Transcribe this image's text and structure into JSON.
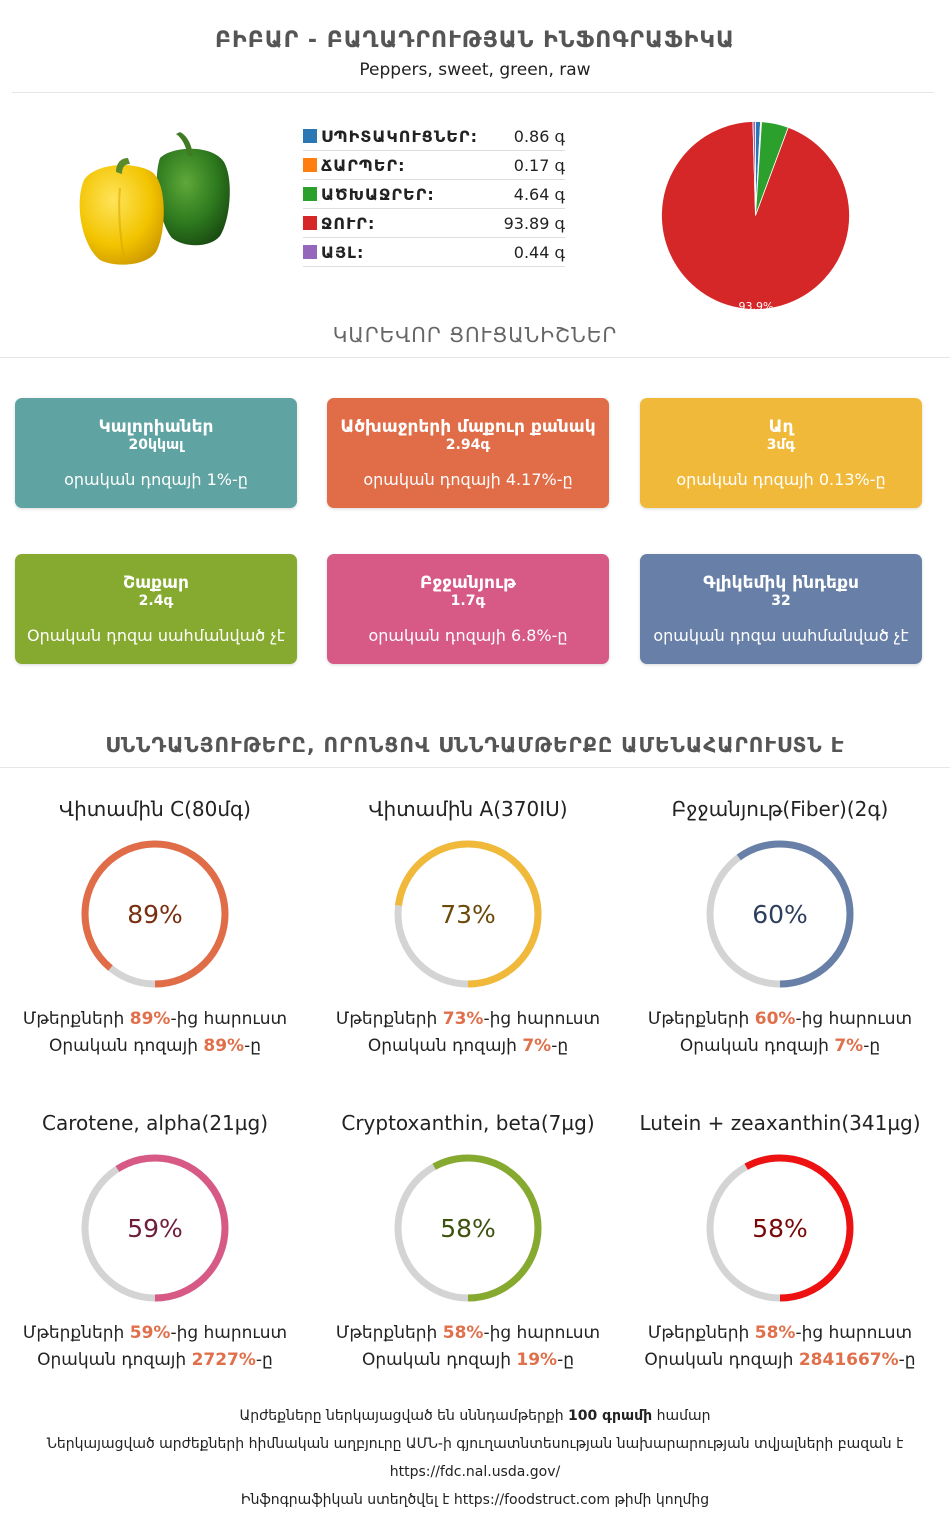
{
  "header": {
    "title": "ԲԻԲԱՐ - ԲԱՂԱԴՐՈՒԹՅԱՆ ԻՆՖՈԳՐԱՖԻԿԱ",
    "subtitle": "Peppers, sweet, green, raw"
  },
  "composition": {
    "rows": [
      {
        "label": "ՍՊԻՏԱԿՈՒՑՆԵՐ:",
        "value": "0.86 գ",
        "color": "#2a77b4"
      },
      {
        "label": "ՃԱՐՊԵՐ:",
        "value": "0.17 գ",
        "color": "#ff7f0e"
      },
      {
        "label": "ԱԾԽԱՋՐԵՐ:",
        "value": "4.64 գ",
        "color": "#2ca02c"
      },
      {
        "label": "ՋՈՒՐ:",
        "value": "93.89 գ",
        "color": "#d62728"
      },
      {
        "label": "ԱՅԼ:",
        "value": "0.44 գ",
        "color": "#9467bd"
      }
    ]
  },
  "chart_data": {
    "type": "pie",
    "categories": [
      "ՍՊԻՏԱԿՈՒՑՆԵՐ",
      "ՃԱՐՊԵՐ",
      "ԱԾԽԱՋՐԵՐ",
      "ՋՈՒՐ",
      "ԱՅԼ"
    ],
    "values": [
      0.86,
      0.17,
      4.64,
      93.89,
      0.44
    ],
    "colors": [
      "#2a77b4",
      "#ff7f0e",
      "#2ca02c",
      "#d62728",
      "#9467bd"
    ],
    "data_labels": [
      "",
      "",
      "",
      "93.9%",
      ""
    ]
  },
  "key_section": {
    "title": "ԿԱՐԵՎՈՐ ՑՈՒՑԱՆԻՇՆԵՐ"
  },
  "cards": [
    {
      "title": "Կալորիաներ",
      "value": "20կկալ",
      "desc": "օրական դոզայի 1%-ը",
      "color": "#5fa3a2"
    },
    {
      "title": "Ածխաջրերի մաքուր քանակ",
      "value": "2.94գ",
      "desc": "օրական դոզայի 4.17%-ը",
      "color": "#e06c48"
    },
    {
      "title": "Աղ",
      "value": "3մգ",
      "desc": "օրական դոզայի 0.13%-ը",
      "color": "#f0b93a"
    },
    {
      "title": "Շաքար",
      "value": "2.4գ",
      "desc": "Օրական դոզա սահմանված չէ",
      "color": "#85aa2f"
    },
    {
      "title": "Բջջանյութ",
      "value": "1.7գ",
      "desc": "օրական դոզայի 6.8%-ը",
      "color": "#d65a85"
    },
    {
      "title": "Գլիկեմիկ ինդեքս",
      "value": "32",
      "desc": "օրական դոզա սահմանված չէ",
      "color": "#6880a8"
    }
  ],
  "nutrients_section": {
    "title": "ՍՆՆԴԱՆՅՈՒԹԵՐԸ, ՈՐՈՆՑՈՎ ՍՆՆԴԱՄԹԵՐՔԸ ԱՄԵՆԱՀԱՐՈՒՍՏՆ Է"
  },
  "nutrients": [
    {
      "name": "Վիտամին C(80մգ)",
      "pct_label": "89%",
      "pct": 89,
      "color": "#e06c48",
      "text_color": "#7a2e10",
      "richer_pre": "Մթերքների ",
      "richer_val": "89%",
      "richer_post": "-ից հարուստ",
      "daily_pre": "Օրական դոզայի ",
      "daily_val": "89%",
      "daily_post": "-ը"
    },
    {
      "name": "Վիտամին A(370IU)",
      "pct_label": "73%",
      "pct": 73,
      "color": "#f0b93a",
      "text_color": "#6b4a0a",
      "richer_pre": "Մթերքների ",
      "richer_val": "73%",
      "richer_post": "-ից հարուստ",
      "daily_pre": "Օրական դոզայի ",
      "daily_val": "7%",
      "daily_post": "-ը"
    },
    {
      "name": "Բջջանյութ(Fiber)(2գ)",
      "pct_label": "60%",
      "pct": 60,
      "color": "#6880a8",
      "text_color": "#2e3e5c",
      "richer_pre": "Մթերքների ",
      "richer_val": "60%",
      "richer_post": "-ից հարուստ",
      "daily_pre": "Օրական դոզայի ",
      "daily_val": "7%",
      "daily_post": "-ը"
    },
    {
      "name": "Carotene, alpha(21µg)",
      "pct_label": "59%",
      "pct": 59,
      "color": "#d65a85",
      "text_color": "#6e1e3c",
      "richer_pre": "Մթերքների ",
      "richer_val": "59%",
      "richer_post": "-ից հարուստ",
      "daily_pre": "Օրական դոզայի ",
      "daily_val": "2727%",
      "daily_post": "-ը"
    },
    {
      "name": "Cryptoxanthin, beta(7µg)",
      "pct_label": "58%",
      "pct": 58,
      "color": "#85aa2f",
      "text_color": "#3e5210",
      "richer_pre": "Մթերքների ",
      "richer_val": "58%",
      "richer_post": "-ից հարուստ",
      "daily_pre": "Օրական դոզայի ",
      "daily_val": "19%",
      "daily_post": "-ը"
    },
    {
      "name": "Lutein + zeaxanthin(341µg)",
      "pct_label": "58%",
      "pct": 58,
      "color": "#ee1111",
      "text_color": "#7a0808",
      "richer_pre": "Մթերքների ",
      "richer_val": "58%",
      "richer_post": "-ից հարուստ",
      "daily_pre": "Օրական դոզայի ",
      "daily_val": "2841667%",
      "daily_post": "-ը"
    }
  ],
  "footer": {
    "line1_pre": "Արժեքները ներկայացված են սննդամթերքի ",
    "line1_bold": "100 գրամի",
    "line1_post": " համար",
    "line2": "Ներկայացված արժեքների հիմնական աղբյուրը ԱՄՆ-ի գյուղատնտեսության նախարարության տվյալների բազան է",
    "line3": "https://fdc.nal.usda.gov/",
    "line4_pre": "Ինֆոգրաֆիկան ստեղծվել է ",
    "line4_link": "https://foodstruct.com",
    "line4_post": " թիմի կողմից"
  }
}
